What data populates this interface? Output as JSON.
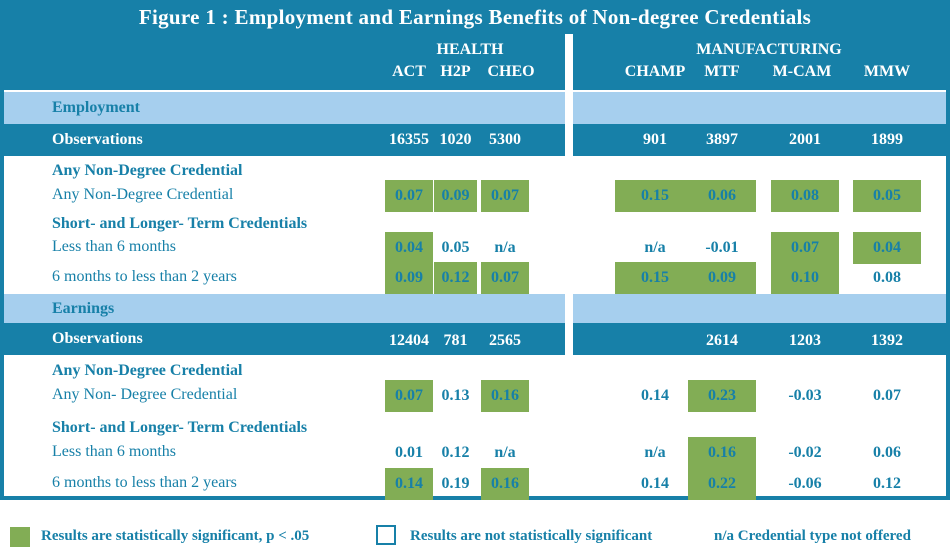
{
  "title": "Figure 1 : Employment and Earnings Benefits of Non-degree Credentials",
  "groups": {
    "health": "HEALTH",
    "manufacturing": "MANUFACTURING"
  },
  "columns": [
    "ACT",
    "H2P",
    "CHEO",
    "CHAMP",
    "MTF",
    "M-CAM",
    "MMW"
  ],
  "sections": {
    "employment": {
      "label": "Employment",
      "observations_label": "Observations",
      "observations": [
        "16355",
        "1020",
        "5300",
        "901",
        "3897",
        "2001",
        "1899"
      ],
      "subhead_any": "Any Non-Degree Credential",
      "subhead_term": "Short- and Longer- Term Credentials",
      "rows": [
        {
          "label": "Any Non-Degree Credential",
          "values": [
            "0.07",
            "0.09",
            "0.07",
            "0.15",
            "0.06",
            "0.08",
            "0.05"
          ],
          "significant": [
            true,
            true,
            true,
            true,
            true,
            true,
            true
          ]
        },
        {
          "label": "Less than 6 months",
          "values": [
            "0.04",
            "0.05",
            "n/a",
            "n/a",
            "-0.01",
            "0.07",
            "0.04"
          ],
          "significant": [
            true,
            false,
            false,
            false,
            false,
            true,
            true
          ]
        },
        {
          "label": "6 months to less than 2 years",
          "values": [
            "0.09",
            "0.12",
            "0.07",
            "0.15",
            "0.09",
            "0.10",
            "0.08"
          ],
          "significant": [
            true,
            true,
            true,
            true,
            true,
            true,
            false
          ]
        }
      ]
    },
    "earnings": {
      "label": "Earnings",
      "observations_label": "Observations",
      "observations": [
        "12404",
        "781",
        "2565",
        "",
        "2614",
        "1203",
        "1392"
      ],
      "subhead_any": "Any Non-Degree Credential",
      "subhead_term": "Short- and Longer- Term Credentials",
      "rows": [
        {
          "label": "Any Non- Degree Credential",
          "values": [
            "0.07",
            "0.13",
            "0.16",
            "0.14",
            "0.23",
            "-0.03",
            "0.07"
          ],
          "significant": [
            true,
            false,
            true,
            false,
            true,
            false,
            false
          ]
        },
        {
          "label": "Less than 6 months",
          "values": [
            "0.01",
            "0.12",
            "n/a",
            "n/a",
            "0.16",
            "-0.02",
            "0.06"
          ],
          "significant": [
            false,
            false,
            false,
            false,
            true,
            false,
            false
          ]
        },
        {
          "label": "6 months to less than 2 years",
          "values": [
            "0.14",
            "0.19",
            "0.16",
            "0.14",
            "0.22",
            "-0.06",
            "0.12"
          ],
          "significant": [
            true,
            false,
            true,
            false,
            true,
            false,
            false
          ]
        }
      ]
    }
  },
  "legend": {
    "significant": "Results are statistically significant, p < .05",
    "not_significant": "Results are not statistically significant",
    "na": "n/a Credential type not offered"
  },
  "colors": {
    "blue": "#1780a8",
    "light_blue": "#a6cfee",
    "green": "#82ad55"
  },
  "chart_data": {
    "type": "table",
    "title": "Figure 1 : Employment and Earnings Benefits of Non-degree Credentials",
    "column_groups": [
      {
        "name": "HEALTH",
        "columns": [
          "ACT",
          "H2P",
          "CHEO"
        ]
      },
      {
        "name": "MANUFACTURING",
        "columns": [
          "CHAMP",
          "MTF",
          "M-CAM",
          "MMW"
        ]
      }
    ]
  }
}
